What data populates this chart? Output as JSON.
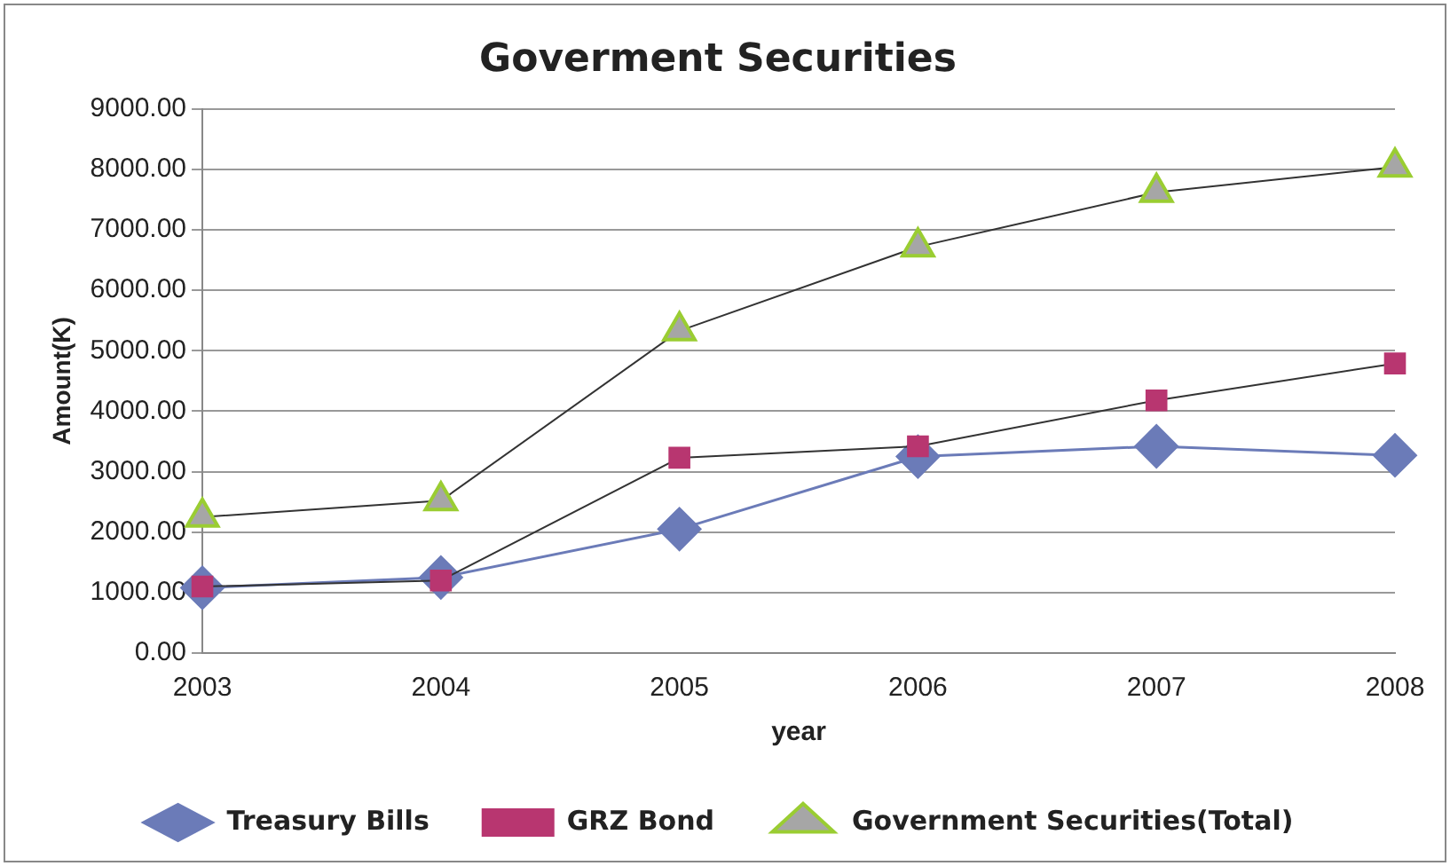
{
  "chart_data": {
    "type": "line",
    "title": "Goverment Securities",
    "xlabel": "year",
    "ylabel": "Amount(K)",
    "categories": [
      "2003",
      "2004",
      "2005",
      "2006",
      "2007",
      "2008"
    ],
    "series": [
      {
        "name": "Treasury Bills",
        "color": "#6b7bb8",
        "marker": "diamond",
        "values": [
          1080,
          1250,
          2050,
          3250,
          3420,
          3270
        ]
      },
      {
        "name": "GRZ Bond",
        "color": "#b83670",
        "marker": "square",
        "values": [
          1100,
          1200,
          3230,
          3420,
          4180,
          4790
        ]
      },
      {
        "name": "Government Securities(Total)",
        "color": "#a6a6a6",
        "marker": "triangle",
        "values": [
          2250,
          2520,
          5330,
          6720,
          7620,
          8040
        ]
      }
    ],
    "ylim": [
      0,
      9000
    ],
    "yticks": [
      {
        "value": 0,
        "label": "0.00"
      },
      {
        "value": 1000,
        "label": "1000.00"
      },
      {
        "value": 2000,
        "label": "2000.00"
      },
      {
        "value": 3000,
        "label": "3000.00"
      },
      {
        "value": 4000,
        "label": "4000.00"
      },
      {
        "value": 5000,
        "label": "5000.00"
      },
      {
        "value": 6000,
        "label": "6000.00"
      },
      {
        "value": 7000,
        "label": "7000.00"
      },
      {
        "value": 8000,
        "label": "8000.00"
      },
      {
        "value": 9000,
        "label": "9000.00"
      }
    ],
    "grid": "y",
    "legend": "bottom",
    "line_style": "solid"
  }
}
